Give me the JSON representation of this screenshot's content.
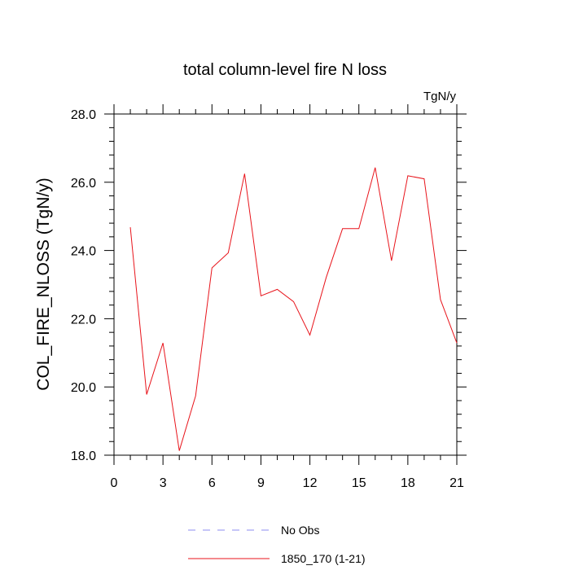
{
  "chart_data": {
    "type": "line",
    "title": "total column-level fire N loss",
    "units": "TgN/y",
    "ylabel": "COL_FIRE_NLOSS  (TgN/y)",
    "xlabel": "",
    "xlim": [
      0,
      21
    ],
    "ylim": [
      18.0,
      28.0
    ],
    "x_ticks": [
      0,
      3,
      6,
      9,
      12,
      15,
      18,
      21
    ],
    "x_tick_labels": [
      "0",
      "3",
      "6",
      "9",
      "12",
      "15",
      "18",
      "21"
    ],
    "y_ticks": [
      18.0,
      20.0,
      22.0,
      24.0,
      26.0,
      28.0
    ],
    "y_tick_labels": [
      "18.0",
      "20.0",
      "22.0",
      "24.0",
      "26.0",
      "28.0"
    ],
    "grid": false,
    "legend_position": "bottom",
    "series": [
      {
        "name": "1850_170 (1-21)",
        "color": "#e8141b",
        "x": [
          1,
          2,
          3,
          4,
          5,
          6,
          7,
          8,
          9,
          10,
          11,
          12,
          13,
          14,
          15,
          16,
          17,
          18,
          19,
          20,
          21
        ],
        "values": [
          24.68,
          19.78,
          21.29,
          18.13,
          19.74,
          23.49,
          23.93,
          26.25,
          22.67,
          22.86,
          22.5,
          21.52,
          23.21,
          24.64,
          24.64,
          26.43,
          23.7,
          26.19,
          26.1,
          22.56,
          21.29
        ]
      }
    ],
    "legend": [
      {
        "label": "No Obs",
        "style": "dashed",
        "color": "#8c8cf0"
      },
      {
        "label": "1850_170 (1-21)",
        "style": "solid",
        "color": "#e8141b"
      }
    ]
  }
}
